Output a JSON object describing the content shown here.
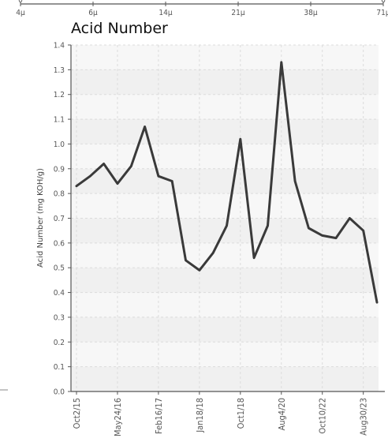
{
  "top_scale": {
    "ticks": [
      "4μ",
      "6μ",
      "14μ",
      "21μ",
      "38μ",
      "71μ"
    ],
    "edge_left": "0",
    "edge_right": "6"
  },
  "chart_data": {
    "type": "line",
    "title": "Acid Number",
    "xlabel": "",
    "ylabel": "Acid Number (mg KOH/g)",
    "ylim": [
      0.0,
      1.4
    ],
    "yticks": [
      "0.0",
      "0.1",
      "0.2",
      "0.3",
      "0.4",
      "0.5",
      "0.6",
      "0.7",
      "0.8",
      "0.9",
      "1.0",
      "1.1",
      "1.2",
      "1.3",
      "1.4"
    ],
    "xtick_labels": [
      "Oct2/15",
      "May24/16",
      "Feb16/17",
      "Jan18/18",
      "Oct1/18",
      "Aug4/20",
      "Oct10/22",
      "Aug30/23"
    ],
    "grid": true,
    "legend": "none",
    "series": [
      {
        "values": [
          0.83,
          0.87,
          0.92,
          0.84,
          0.91,
          1.07,
          0.87,
          0.85,
          0.53,
          0.49,
          0.56,
          0.67,
          1.02,
          0.54,
          0.67,
          1.33,
          0.85,
          0.66,
          0.63,
          0.62,
          0.7,
          0.65,
          0.36
        ],
        "color": "#3a3a3a"
      }
    ]
  }
}
